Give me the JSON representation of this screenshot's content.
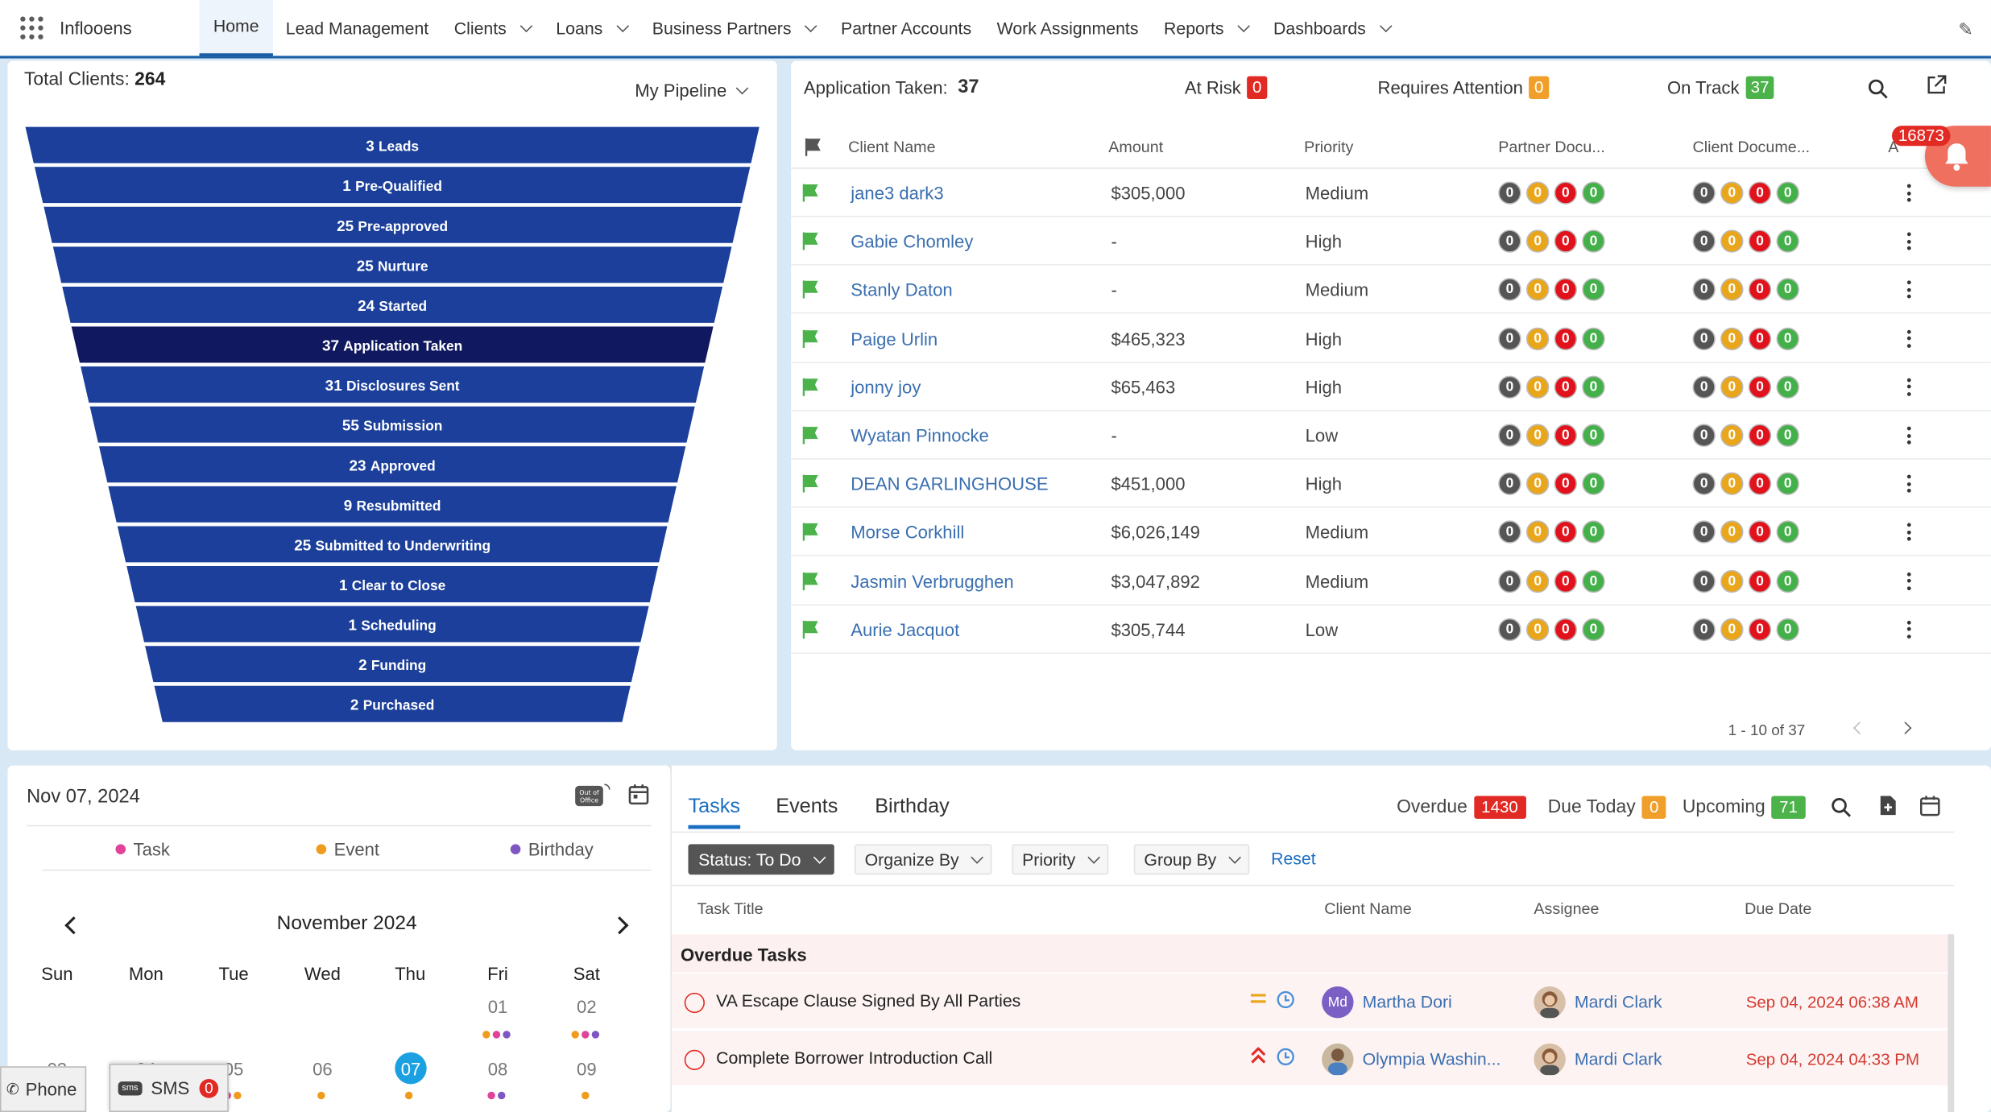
{
  "nav": {
    "app_name": "Inflooens",
    "items": [
      {
        "label": "Home",
        "dropdown": false,
        "active": true
      },
      {
        "label": "Lead Management",
        "dropdown": false
      },
      {
        "label": "Clients",
        "dropdown": true
      },
      {
        "label": "Loans",
        "dropdown": true
      },
      {
        "label": "Business Partners",
        "dropdown": true
      },
      {
        "label": "Partner Accounts",
        "dropdown": false
      },
      {
        "label": "Work Assignments",
        "dropdown": false
      },
      {
        "label": "Reports",
        "dropdown": true
      },
      {
        "label": "Dashboards",
        "dropdown": true
      }
    ]
  },
  "pipeline": {
    "total_label": "Total Clients:",
    "total_value": "264",
    "selector": "My Pipeline",
    "highlight_color": "#10195f",
    "bar_color": "#1b3f9a",
    "stages": [
      {
        "count": "3",
        "label": "Leads"
      },
      {
        "count": "1",
        "label": "Pre-Qualified"
      },
      {
        "count": "25",
        "label": "Pre-approved"
      },
      {
        "count": "25",
        "label": "Nurture"
      },
      {
        "count": "24",
        "label": "Started"
      },
      {
        "count": "37",
        "label": "Application Taken",
        "selected": true
      },
      {
        "count": "31",
        "label": "Disclosures Sent"
      },
      {
        "count": "55",
        "label": "Submission"
      },
      {
        "count": "23",
        "label": "Approved"
      },
      {
        "count": "9",
        "label": "Resubmitted"
      },
      {
        "count": "25",
        "label": "Submitted to Underwriting"
      },
      {
        "count": "1",
        "label": "Clear to Close"
      },
      {
        "count": "1",
        "label": "Scheduling"
      },
      {
        "count": "2",
        "label": "Funding"
      },
      {
        "count": "2",
        "label": "Purchased"
      }
    ]
  },
  "apps": {
    "title": "Application Taken:",
    "count": "37",
    "at_risk_label": "At Risk",
    "at_risk": "0",
    "attention_label": "Requires Attention",
    "attention": "0",
    "on_track_label": "On Track",
    "on_track": "37",
    "columns": [
      "Client Name",
      "Amount",
      "Priority",
      "Partner Docu...",
      "Client Docume...",
      "A"
    ],
    "notification_count": "16873",
    "rows": [
      {
        "name": "jane3 dark3",
        "amount": "$305,000",
        "priority": "Medium"
      },
      {
        "name": "Gabie Chomley",
        "amount": "-",
        "priority": "High"
      },
      {
        "name": "Stanly Daton",
        "amount": "-",
        "priority": "Medium"
      },
      {
        "name": "Paige Urlin",
        "amount": "$465,323",
        "priority": "High"
      },
      {
        "name": "jonny joy",
        "amount": "$65,463",
        "priority": "High"
      },
      {
        "name": "Wyatan Pinnocke",
        "amount": "-",
        "priority": "Low"
      },
      {
        "name": "DEAN GARLINGHOUSE",
        "amount": "$451,000",
        "priority": "High"
      },
      {
        "name": "Morse Corkhill",
        "amount": "$6,026,149",
        "priority": "Medium"
      },
      {
        "name": "Jasmin Verbrugghen",
        "amount": "$3,047,892",
        "priority": "Medium"
      },
      {
        "name": "Aurie Jacquot",
        "amount": "$305,744",
        "priority": "Low"
      }
    ],
    "doc_counts": [
      "0",
      "0",
      "0",
      "0"
    ],
    "pagination": "1 - 10 of 37"
  },
  "calendar": {
    "date": "Nov 07, 2024",
    "legend": [
      "Task",
      "Event",
      "Birthday"
    ],
    "month": "November 2024",
    "weekdays": [
      "Sun",
      "Mon",
      "Tue",
      "Wed",
      "Thu",
      "Fri",
      "Sat"
    ],
    "row1": [
      "01",
      "02"
    ],
    "row2": [
      "03",
      "04",
      "05",
      "06",
      "07",
      "08",
      "09"
    ],
    "today": "07"
  },
  "tasks": {
    "tabs": [
      "Tasks",
      "Events",
      "Birthday"
    ],
    "overdue_label": "Overdue",
    "overdue": "1430",
    "due_today_label": "Due Today",
    "due_today": "0",
    "upcoming_label": "Upcoming",
    "upcoming": "71",
    "filters": [
      "Status: To Do",
      "Organize By",
      "Priority",
      "Group By"
    ],
    "reset": "Reset",
    "columns": [
      "Task Title",
      "Client Name",
      "Assignee",
      "Due Date"
    ],
    "section": "Overdue Tasks",
    "rows": [
      {
        "title": "VA Escape Clause Signed By All Parties",
        "client_initials": "Md",
        "client": "Martha Dori",
        "assignee": "Mardi Clark",
        "due": "Sep 04, 2024 06:38 AM"
      },
      {
        "title": "Complete Borrower Introduction Call",
        "client_initials": "",
        "client": "Olympia Washin...",
        "assignee": "Mardi Clark",
        "due": "Sep 04, 2024 04:33 PM"
      }
    ]
  },
  "dock": {
    "phone": "Phone",
    "sms": "SMS",
    "sms_count": "0"
  }
}
